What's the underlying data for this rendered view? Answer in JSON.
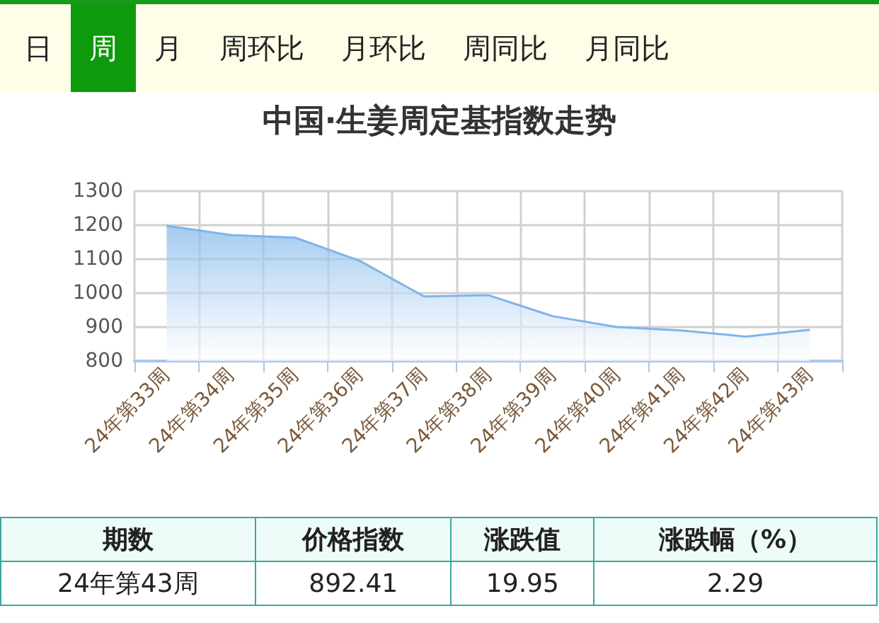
{
  "chart_data": [
    {
      "type": "other",
      "categories": [
        "日",
        "周",
        "月",
        "周环比",
        "月环比",
        "周同比",
        "月同比"
      ]
    },
    {
      "type": "area",
      "title": "中国·生姜周定基指数走势",
      "categories": [
        "24年第33周",
        "24年第34周",
        "24年第35周",
        "24年第36周",
        "24年第37周",
        "24年第38周",
        "24年第39周",
        "24年第40周",
        "24年第41周",
        "24年第42周",
        "24年第43周"
      ],
      "series": [
        {
          "color": "#7eb5ea",
          "values": [
            1198,
            1171,
            1163,
            1095,
            990,
            994,
            932,
            900,
            890,
            872,
            892
          ]
        }
      ],
      "ylim": [
        800,
        1300
      ],
      "yticks": [
        800,
        900,
        1000,
        1100,
        1200,
        1300
      ],
      "grid": true,
      "marker": "none"
    },
    {
      "type": "other",
      "categories": [
        "期数",
        "价格指数",
        "涨跌值",
        "涨跌幅（%）"
      ],
      "annotations": [
        "24年第43周",
        "892.41",
        "19.95",
        "2.29"
      ]
    }
  ]
}
